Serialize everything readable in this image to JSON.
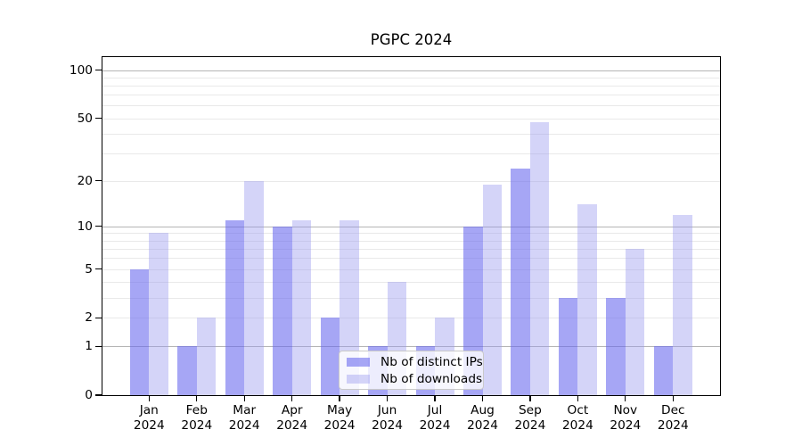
{
  "chart_data": {
    "type": "bar",
    "title": "PGPC 2024",
    "categories": [
      "Jan 2024",
      "Feb 2024",
      "Mar 2024",
      "Apr 2024",
      "May 2024",
      "Jun 2024",
      "Jul 2024",
      "Aug 2024",
      "Sep 2024",
      "Oct 2024",
      "Nov 2024",
      "Dec 2024"
    ],
    "series": [
      {
        "name": "Nb of distinct IPs",
        "color": "#6666ee",
        "alpha": 0.58,
        "values": [
          5,
          1,
          11,
          10,
          2,
          1,
          1,
          10,
          24,
          3,
          3,
          1
        ]
      },
      {
        "name": "Nb of downloads",
        "color": "#9999ee",
        "alpha": 0.42,
        "values": [
          9,
          2,
          20,
          11,
          11,
          4,
          2,
          19,
          47,
          14,
          7,
          12
        ]
      }
    ],
    "yscale": "log1p",
    "ylim": [
      0,
      123
    ],
    "ytick_values": [
      100,
      50,
      20,
      10,
      5,
      2,
      1,
      0
    ],
    "ytick_labels": [
      "100",
      "50",
      "20",
      "10",
      "5",
      "2",
      "1",
      "0"
    ],
    "minor_grid_values": [
      2,
      3,
      4,
      5,
      6,
      7,
      8,
      9,
      20,
      30,
      40,
      50,
      60,
      70,
      80,
      90
    ],
    "major_grid_values": [
      1,
      10,
      100
    ],
    "grid": true,
    "legend": {
      "position": "lower center",
      "labels": [
        "Nb of distinct IPs",
        "Nb of downloads"
      ]
    },
    "colors": {
      "major_grid": "#b5b5b5",
      "minor_grid": "#e9e9e9",
      "axis": "#000000",
      "legend_border": "#c9c9c9"
    }
  }
}
